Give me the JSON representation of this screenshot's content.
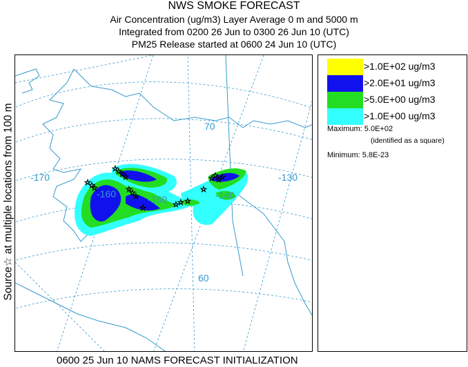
{
  "header": {
    "title": "NWS SMOKE FORECAST",
    "line1": "Air Concentration (ug/m3) Layer Average    0 m and  5000 m",
    "line2": "Integrated from 0200 26 Jun to 0300 26 Jun 10 (UTC)",
    "line3": "PM25 Release started at 0600 24 Jun 10 (UTC)"
  },
  "side_label": "Source☆  at multiple locations    from   100 m",
  "map": {
    "lat_labels": [
      "70",
      "60"
    ],
    "lon_labels": [
      "-170",
      "-160",
      "-150",
      "-140",
      "-130"
    ],
    "colors": {
      "coast": "#3399cc",
      "grid": "#3399cc",
      "cyan": "#33ffff",
      "green": "#22dd22",
      "blue": "#1111ee",
      "yellow": "#ffff00"
    }
  },
  "legend": {
    "items": [
      {
        "label": ">1.0E+02 ug/m3",
        "color": "#ffff00"
      },
      {
        "label": ">2.0E+01 ug/m3",
        "color": "#1111ee"
      },
      {
        "label": ">5.0E+00 ug/m3",
        "color": "#22dd22"
      },
      {
        "label": ">1.0E+00 ug/m3",
        "color": "#33ffff"
      }
    ],
    "maximum": "Maximum: 5.0E+02",
    "maximum_note": "(identified as a square)",
    "minimum": "Minimum: 5.8E-23"
  },
  "footer": "0600 25 Jun 10 NAMS FORECAST INITIALIZATION"
}
